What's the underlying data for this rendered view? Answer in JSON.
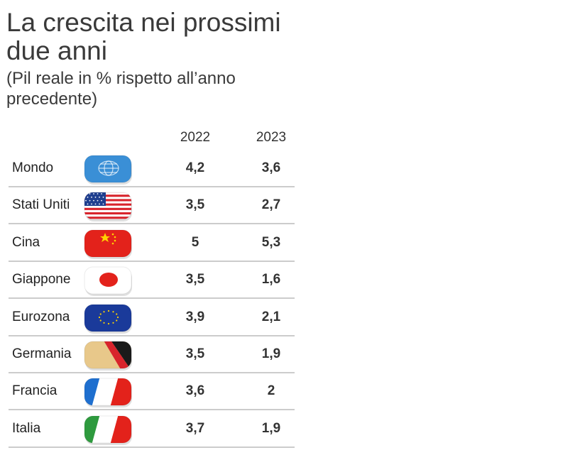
{
  "header": {
    "title": "La crescita nei prossimi due anni",
    "subtitle": "(Pil reale in % rispetto all’anno precedente)"
  },
  "table": {
    "columns": [
      "2022",
      "2023"
    ],
    "rows": [
      {
        "country": "Mondo",
        "flag": "world-icon",
        "v2022": "4,2",
        "v2023": "3,6"
      },
      {
        "country": "Stati Uniti",
        "flag": "usa-flag-icon",
        "v2022": "3,5",
        "v2023": "2,7"
      },
      {
        "country": "Cina",
        "flag": "china-flag-icon",
        "v2022": "5",
        "v2023": "5,3"
      },
      {
        "country": "Giappone",
        "flag": "japan-flag-icon",
        "v2022": "3,5",
        "v2023": "1,6"
      },
      {
        "country": "Eurozona",
        "flag": "eu-flag-icon",
        "v2022": "3,9",
        "v2023": "2,1"
      },
      {
        "country": "Germania",
        "flag": "germany-flag-icon",
        "v2022": "3,5",
        "v2023": "1,9"
      },
      {
        "country": "Francia",
        "flag": "france-flag-icon",
        "v2022": "3,6",
        "v2023": "2"
      },
      {
        "country": "Italia",
        "flag": "italy-flag-icon",
        "v2022": "3,7",
        "v2023": "1,9"
      }
    ]
  },
  "chart_data": {
    "type": "table",
    "title": "La crescita nei prossimi due anni",
    "subtitle": "(Pil reale in % rispetto all’anno precedente)",
    "categories": [
      "Mondo",
      "Stati Uniti",
      "Cina",
      "Giappone",
      "Eurozona",
      "Germania",
      "Francia",
      "Italia"
    ],
    "series": [
      {
        "name": "2022",
        "values": [
          4.2,
          3.5,
          5,
          3.5,
          3.9,
          3.5,
          3.6,
          3.7
        ]
      },
      {
        "name": "2023",
        "values": [
          3.6,
          2.7,
          5.3,
          1.6,
          2.1,
          1.9,
          2,
          1.9
        ]
      }
    ]
  },
  "colors": {
    "divider": "#cccccc",
    "world": "#3a8fd6",
    "usa_red": "#d8242c",
    "usa_blue": "#1f3f8f",
    "china_red": "#e3221b",
    "china_yellow": "#ffd200",
    "japan_red": "#e3221b",
    "eu_blue": "#1a3a9a",
    "eu_yellow": "#ffd200",
    "de_black": "#1a1a1a",
    "de_red": "#d8242c",
    "de_gold": "#e8c88a",
    "fr_blue": "#1e6fcf",
    "fr_red": "#e3221b",
    "it_green": "#2e9a3e",
    "it_red": "#e3221b"
  }
}
